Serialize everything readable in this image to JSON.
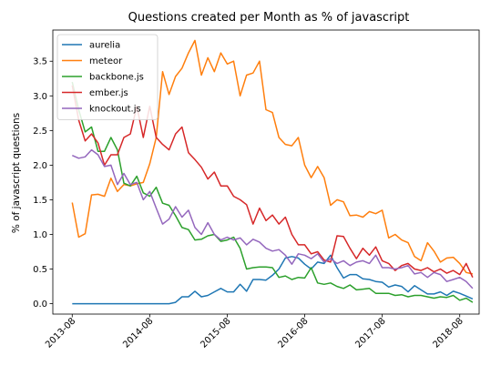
{
  "chart_data": {
    "type": "line",
    "title": "Questions created per Month as % of javascript",
    "xlabel": "",
    "ylabel": "% of javascript questions",
    "x_ticks": [
      "2013-08",
      "2014-08",
      "2015-08",
      "2016-08",
      "2017-08",
      "2018-08"
    ],
    "y_ticks": [
      "0.0",
      "0.5",
      "1.0",
      "1.5",
      "2.0",
      "2.5",
      "3.0",
      "3.5"
    ],
    "xlim": [
      "2013-05",
      "2018-11"
    ],
    "ylim": [
      -0.15,
      3.95
    ],
    "grid": false,
    "legend_position": "top-left",
    "x": [
      "2013-08",
      "2013-09",
      "2013-10",
      "2013-11",
      "2013-12",
      "2014-01",
      "2014-02",
      "2014-03",
      "2014-04",
      "2014-05",
      "2014-06",
      "2014-07",
      "2014-08",
      "2014-09",
      "2014-10",
      "2014-11",
      "2014-12",
      "2015-01",
      "2015-02",
      "2015-03",
      "2015-04",
      "2015-05",
      "2015-06",
      "2015-07",
      "2015-08",
      "2015-09",
      "2015-10",
      "2015-11",
      "2015-12",
      "2016-01",
      "2016-02",
      "2016-03",
      "2016-04",
      "2016-05",
      "2016-06",
      "2016-07",
      "2016-08",
      "2016-09",
      "2016-10",
      "2016-11",
      "2016-12",
      "2017-01",
      "2017-02",
      "2017-03",
      "2017-04",
      "2017-05",
      "2017-06",
      "2017-07",
      "2017-08",
      "2017-09",
      "2017-10",
      "2017-11",
      "2017-12",
      "2018-01",
      "2018-02",
      "2018-03",
      "2018-04",
      "2018-05",
      "2018-06",
      "2018-07",
      "2018-08",
      "2018-09",
      "2018-10"
    ],
    "series": [
      {
        "name": "aurelia",
        "color": "#1f77b4",
        "values": [
          0,
          0,
          0,
          0,
          0,
          0,
          0,
          0,
          0,
          0,
          0,
          0,
          0,
          0,
          0,
          0,
          0.02,
          0.1,
          0.1,
          0.18,
          0.1,
          0.12,
          0.17,
          0.22,
          0.17,
          0.17,
          0.28,
          0.18,
          0.35,
          0.35,
          0.34,
          0.41,
          0.5,
          0.66,
          0.68,
          0.66,
          0.57,
          0.5,
          0.6,
          0.58,
          0.7,
          0.52,
          0.37,
          0.42,
          0.42,
          0.36,
          0.35,
          0.32,
          0.31,
          0.24,
          0.27,
          0.25,
          0.17,
          0.26,
          0.2,
          0.14,
          0.14,
          0.17,
          0.12,
          0.18,
          0.15,
          0.11,
          0.07
        ]
      },
      {
        "name": "meteor",
        "color": "#ff7f0e",
        "values": [
          1.46,
          0.96,
          1.01,
          1.57,
          1.58,
          1.55,
          1.81,
          1.62,
          1.72,
          1.7,
          1.73,
          1.75,
          2.02,
          2.4,
          3.35,
          3.02,
          3.28,
          3.4,
          3.62,
          3.8,
          3.3,
          3.55,
          3.35,
          3.62,
          3.46,
          3.5,
          3.0,
          3.3,
          3.33,
          3.5,
          2.8,
          2.76,
          2.4,
          2.3,
          2.28,
          2.4,
          2.0,
          1.82,
          1.98,
          1.82,
          1.42,
          1.5,
          1.47,
          1.27,
          1.28,
          1.25,
          1.33,
          1.3,
          1.35,
          0.95,
          1.0,
          0.92,
          0.88,
          0.68,
          0.62,
          0.88,
          0.76,
          0.6,
          0.66,
          0.67,
          0.58,
          0.45,
          0.43
        ]
      },
      {
        "name": "backbone.js",
        "color": "#2ca02c",
        "values": [
          3.2,
          2.8,
          2.48,
          2.55,
          2.2,
          2.2,
          2.4,
          2.22,
          1.74,
          1.7,
          1.84,
          1.6,
          1.55,
          1.68,
          1.45,
          1.42,
          1.27,
          1.1,
          1.07,
          0.92,
          0.93,
          0.98,
          1.0,
          0.9,
          0.92,
          0.96,
          0.8,
          0.5,
          0.52,
          0.53,
          0.53,
          0.52,
          0.38,
          0.4,
          0.35,
          0.38,
          0.37,
          0.52,
          0.3,
          0.28,
          0.3,
          0.25,
          0.22,
          0.27,
          0.2,
          0.21,
          0.22,
          0.15,
          0.15,
          0.15,
          0.12,
          0.13,
          0.1,
          0.12,
          0.12,
          0.1,
          0.08,
          0.1,
          0.09,
          0.12,
          0.05,
          0.08,
          0.02
        ]
      },
      {
        "name": "ember.js",
        "color": "#d62728",
        "values": [
          3.15,
          2.65,
          2.35,
          2.45,
          2.32,
          2.0,
          2.15,
          2.15,
          2.4,
          2.45,
          2.85,
          2.4,
          2.85,
          2.4,
          2.3,
          2.22,
          2.45,
          2.55,
          2.18,
          2.08,
          1.97,
          1.8,
          1.9,
          1.7,
          1.7,
          1.55,
          1.5,
          1.43,
          1.15,
          1.38,
          1.2,
          1.28,
          1.15,
          1.25,
          1.0,
          0.85,
          0.85,
          0.72,
          0.75,
          0.63,
          0.6,
          0.98,
          0.97,
          0.8,
          0.65,
          0.8,
          0.7,
          0.82,
          0.62,
          0.58,
          0.48,
          0.55,
          0.58,
          0.5,
          0.48,
          0.52,
          0.46,
          0.5,
          0.44,
          0.48,
          0.42,
          0.58,
          0.38
        ]
      },
      {
        "name": "knockout.js",
        "color": "#9467bd",
        "values": [
          2.14,
          2.1,
          2.12,
          2.22,
          2.15,
          1.98,
          2.0,
          1.72,
          1.88,
          1.72,
          1.75,
          1.5,
          1.62,
          1.38,
          1.15,
          1.22,
          1.4,
          1.25,
          1.35,
          1.1,
          1.0,
          1.17,
          1.0,
          0.92,
          0.96,
          0.92,
          0.95,
          0.85,
          0.93,
          0.89,
          0.8,
          0.76,
          0.78,
          0.7,
          0.57,
          0.72,
          0.7,
          0.65,
          0.72,
          0.6,
          0.65,
          0.58,
          0.62,
          0.55,
          0.6,
          0.62,
          0.58,
          0.7,
          0.52,
          0.52,
          0.5,
          0.52,
          0.55,
          0.43,
          0.45,
          0.38,
          0.45,
          0.42,
          0.32,
          0.35,
          0.38,
          0.32,
          0.22
        ]
      }
    ]
  }
}
